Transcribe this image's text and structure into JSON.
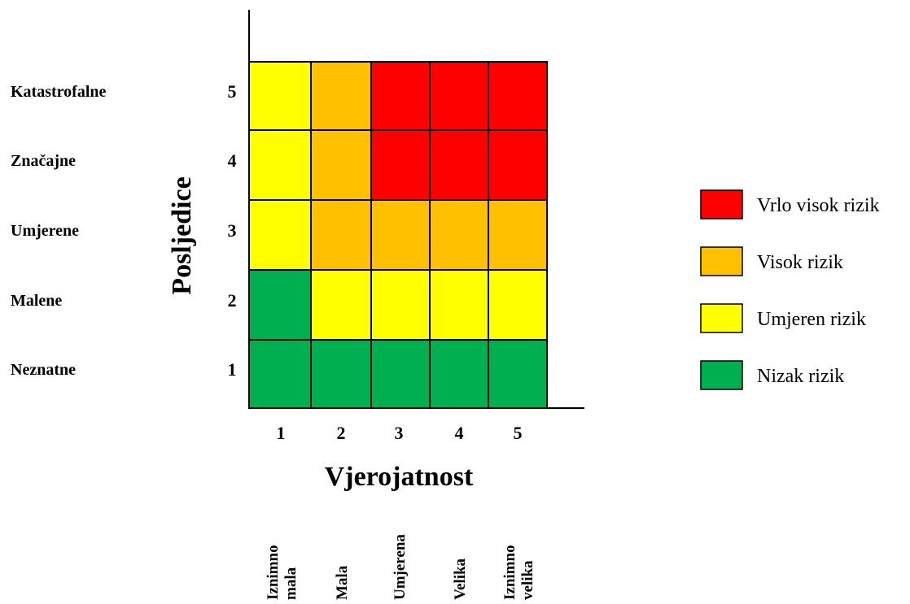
{
  "chart_data": {
    "type": "heatmap",
    "ylabel": "Posljedice",
    "xlabel": "Vjerojatnost",
    "x_ticks": [
      "1",
      "2",
      "3",
      "4",
      "5"
    ],
    "y_ticks": [
      "1",
      "2",
      "3",
      "4",
      "5"
    ],
    "y_categories": [
      "Neznatne",
      "Malene",
      "Umjerene",
      "Značajne",
      "Katastrofalne"
    ],
    "x_categories": [
      [
        "Iznimno",
        "mala"
      ],
      [
        "Mala"
      ],
      [
        "Umjerena"
      ],
      [
        "Velika"
      ],
      [
        "Iznimno",
        "velika"
      ]
    ],
    "levels": [
      {
        "key": "very_high",
        "label": "Vrlo visok rizik",
        "color": "#ff0000"
      },
      {
        "key": "high",
        "label": "Visok rizik",
        "color": "#ffc000"
      },
      {
        "key": "moderate",
        "label": "Umjeren rizik",
        "color": "#ffff00"
      },
      {
        "key": "low",
        "label": "Nizak rizik",
        "color": "#00b050"
      }
    ],
    "matrix_rows_consequence_1_to_5": [
      [
        "low",
        "low",
        "low",
        "low",
        "low"
      ],
      [
        "low",
        "moderate",
        "moderate",
        "moderate",
        "moderate"
      ],
      [
        "moderate",
        "high",
        "high",
        "high",
        "high"
      ],
      [
        "moderate",
        "high",
        "very_high",
        "very_high",
        "very_high"
      ],
      [
        "moderate",
        "high",
        "very_high",
        "very_high",
        "very_high"
      ]
    ],
    "legend_position": "right",
    "grid": true
  }
}
